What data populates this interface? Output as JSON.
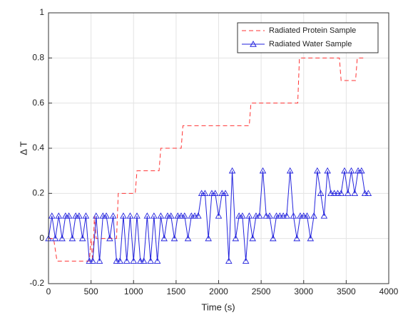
{
  "chart_data": {
    "type": "line",
    "xlabel": "Time (s)",
    "ylabel": "Δ T",
    "xlim": [
      0,
      4000
    ],
    "xticks": [
      0,
      500,
      1000,
      1500,
      2000,
      2500,
      3000,
      3500,
      4000
    ],
    "ylim": [
      -0.2,
      1
    ],
    "yticks": [
      -0.2,
      0,
      0.2,
      0.4,
      0.6,
      0.8,
      1
    ],
    "grid": true,
    "legend": "upper right",
    "series": [
      {
        "name": "Radiated Protein Sample",
        "color": "#ff3333",
        "style": "dashed",
        "x": [
          0,
          60,
          100,
          150,
          170,
          480,
          500,
          520,
          540,
          560,
          600,
          800,
          820,
          1020,
          1040,
          1300,
          1320,
          1560,
          1580,
          2360,
          2380,
          2930,
          2950,
          3420,
          3440,
          3610,
          3630,
          3700
        ],
        "values": [
          0,
          0,
          -0.1,
          -0.1,
          -0.1,
          -0.1,
          0,
          -0.1,
          0.1,
          0,
          0,
          0,
          0.2,
          0.2,
          0.3,
          0.3,
          0.4,
          0.4,
          0.5,
          0.5,
          0.6,
          0.6,
          0.8,
          0.8,
          0.7,
          0.7,
          0.8,
          0.8
        ]
      },
      {
        "name": "Radiated Water Sample",
        "color": "#2222dd",
        "style": "solid",
        "marker": "triangle",
        "x": [
          0,
          40,
          80,
          120,
          160,
          200,
          240,
          280,
          320,
          360,
          400,
          440,
          480,
          520,
          560,
          600,
          640,
          680,
          720,
          760,
          800,
          840,
          880,
          920,
          960,
          1000,
          1040,
          1080,
          1120,
          1160,
          1200,
          1240,
          1280,
          1320,
          1360,
          1400,
          1440,
          1480,
          1520,
          1560,
          1600,
          1640,
          1680,
          1720,
          1760,
          1800,
          1840,
          1880,
          1920,
          1960,
          2000,
          2040,
          2080,
          2120,
          2160,
          2200,
          2240,
          2280,
          2320,
          2360,
          2400,
          2440,
          2480,
          2520,
          2560,
          2600,
          2640,
          2680,
          2720,
          2760,
          2800,
          2840,
          2880,
          2920,
          2960,
          3000,
          3040,
          3080,
          3120,
          3160,
          3200,
          3240,
          3280,
          3320,
          3360,
          3400,
          3440,
          3480,
          3520,
          3560,
          3600,
          3640,
          3680,
          3720,
          3760
        ],
        "values": [
          0,
          0.1,
          0,
          0.1,
          0,
          0.1,
          0.1,
          0,
          0.1,
          0.1,
          0,
          0.1,
          -0.1,
          -0.1,
          0.1,
          -0.1,
          0.1,
          0.1,
          0,
          0.1,
          -0.1,
          -0.1,
          0.1,
          -0.1,
          0.1,
          -0.1,
          0.1,
          -0.1,
          -0.1,
          0.1,
          -0.1,
          0.1,
          -0.1,
          0.1,
          0,
          0.1,
          0.1,
          0,
          0.1,
          0.1,
          0.1,
          0,
          0.1,
          0.1,
          0.1,
          0.2,
          0.2,
          0,
          0.2,
          0.2,
          0.1,
          0.2,
          0.2,
          -0.1,
          0.3,
          0,
          0.1,
          0.1,
          -0.1,
          0.1,
          0,
          0.1,
          0.1,
          0.3,
          0.1,
          0.1,
          0,
          0.1,
          0.1,
          0.1,
          0.1,
          0.3,
          0.1,
          0,
          0.1,
          0.1,
          0.1,
          0,
          0.1,
          0.3,
          0.2,
          0.1,
          0.3,
          0.2,
          0.2,
          0.2,
          0.2,
          0.3,
          0.2,
          0.3,
          0.2,
          0.3,
          0.3,
          0.2,
          0.2
        ]
      }
    ]
  }
}
